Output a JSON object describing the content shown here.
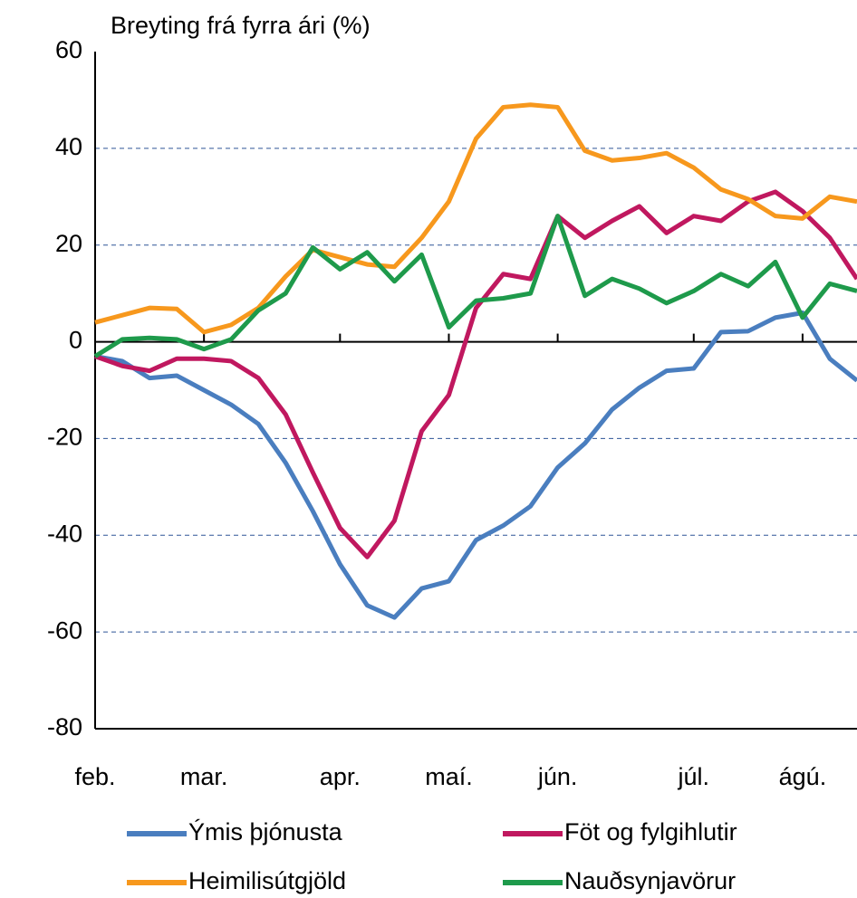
{
  "chart_data": {
    "type": "line",
    "title": "Breyting frá fyrra ári (%)",
    "categories": [
      "feb.",
      null,
      null,
      null,
      "mar.",
      null,
      null,
      null,
      null,
      "apr.",
      null,
      null,
      null,
      "maí.",
      null,
      null,
      null,
      "jún.",
      null,
      null,
      null,
      null,
      "júl.",
      null,
      null,
      null,
      "ágú.",
      null,
      null
    ],
    "series": [
      {
        "name": "Ýmis þjónusta",
        "color": "#4a7ebf",
        "values": [
          -3,
          -4,
          -7.5,
          -7,
          -10,
          -13,
          -17,
          -25,
          -35,
          -46,
          -54.5,
          -57,
          -51,
          -49.5,
          -41,
          -38,
          -34,
          -26,
          -21,
          -14,
          -9.5,
          -6,
          -5.5,
          2,
          2.2,
          5,
          6,
          -3.5,
          -8
        ]
      },
      {
        "name": "Föt og fylgihlutir",
        "color": "#c0185f",
        "values": [
          -3,
          -5,
          -6,
          -3.5,
          -3.5,
          -4,
          -7.5,
          -15,
          -27,
          -38.5,
          -44.5,
          -37,
          -18.5,
          -11,
          7,
          14,
          13,
          26,
          21.5,
          25,
          28,
          22.5,
          26,
          25,
          29,
          31,
          27,
          21.5,
          13
        ]
      },
      {
        "name": "Heimilisútgjöld",
        "color": "#f7981d",
        "values": [
          4,
          5.5,
          7,
          6.8,
          2,
          3.5,
          7,
          13.5,
          19,
          17.5,
          16,
          15.5,
          21.5,
          29,
          42,
          48.5,
          49,
          48.5,
          39.5,
          37.5,
          38,
          39,
          36,
          31.5,
          29.5,
          26,
          25.5,
          30,
          29
        ]
      },
      {
        "name": "Nauðsynjavörur",
        "color": "#1e9a4b",
        "values": [
          -3,
          0.5,
          0.8,
          0.5,
          -1.5,
          0.5,
          6.5,
          10,
          19.5,
          15,
          18.5,
          12.5,
          18,
          3,
          8.5,
          9,
          10,
          26,
          9.5,
          13,
          11,
          8,
          10.5,
          14,
          11.5,
          16.5,
          5,
          12,
          10.5
        ]
      }
    ],
    "ylim": [
      -80,
      60
    ],
    "yticks": [
      -80,
      -60,
      -40,
      -20,
      0,
      20,
      40,
      60
    ],
    "grid": true
  }
}
